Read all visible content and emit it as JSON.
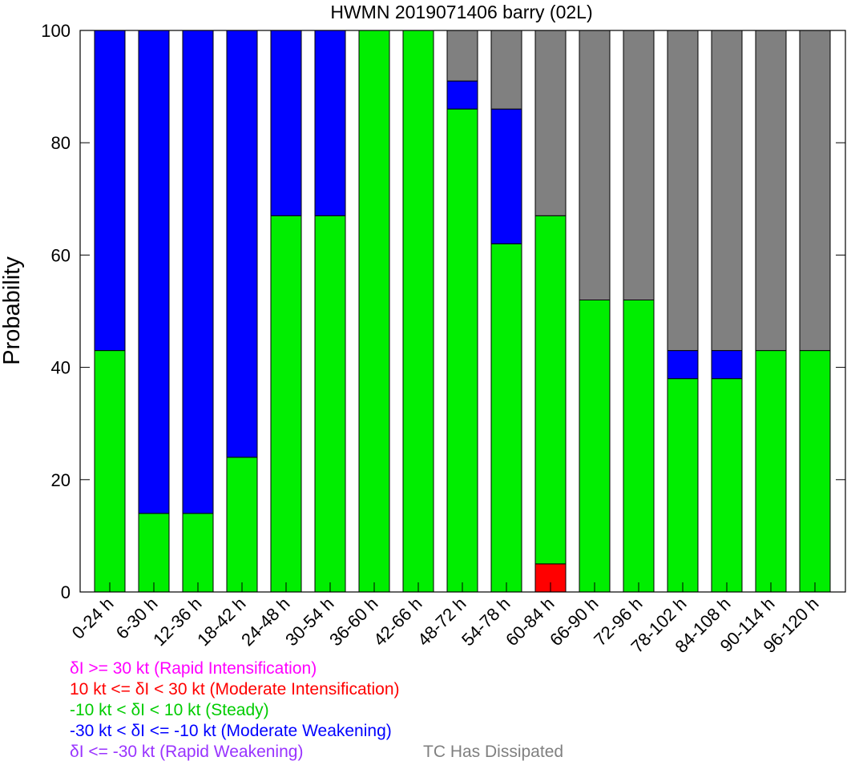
{
  "chart_data": {
    "type": "bar",
    "stacked": true,
    "title": "HWMN 2019071406 barry (02L)",
    "xlabel": "",
    "ylabel": "Probability",
    "ylim": [
      0,
      100
    ],
    "yticks": [
      "0",
      "20",
      "40",
      "60",
      "80",
      "100"
    ],
    "categories": [
      "0-24 h",
      "6-30 h",
      "12-36 h",
      "18-42 h",
      "24-48 h",
      "30-54 h",
      "36-60 h",
      "42-66 h",
      "48-72 h",
      "54-78 h",
      "60-84 h",
      "66-90 h",
      "72-96 h",
      "78-102 h",
      "84-108 h",
      "90-114 h",
      "96-120 h"
    ],
    "series": [
      {
        "key": "moderate_intensification",
        "color": "#ff0000",
        "values": [
          0,
          0,
          0,
          0,
          0,
          0,
          0,
          0,
          0,
          0,
          5,
          0,
          0,
          0,
          0,
          0,
          0
        ]
      },
      {
        "key": "steady",
        "color": "#00ee00",
        "values": [
          43,
          14,
          14,
          24,
          67,
          67,
          100,
          100,
          86,
          62,
          62,
          52,
          52,
          38,
          38,
          43,
          43
        ]
      },
      {
        "key": "moderate_weakening",
        "color": "#0000ff",
        "values": [
          57,
          86,
          86,
          76,
          33,
          33,
          0,
          0,
          5,
          24,
          0,
          0,
          0,
          5,
          5,
          0,
          0
        ]
      },
      {
        "key": "dissipated",
        "color": "#808080",
        "values": [
          0,
          0,
          0,
          0,
          0,
          0,
          0,
          0,
          9,
          14,
          33,
          48,
          48,
          57,
          57,
          57,
          57
        ]
      }
    ],
    "legend": [
      {
        "text": "δI >= 30 kt (Rapid Intensification)",
        "color": "#ff00ff"
      },
      {
        "text": "10 kt <= δI < 30 kt (Moderate Intensification)",
        "color": "#ff0000"
      },
      {
        "text": "-10 kt < δI < 10 kt (Steady)",
        "color": "#00cc00"
      },
      {
        "text": "-30 kt < δI <= -10 kt (Moderate Weakening)",
        "color": "#0000ff"
      },
      {
        "text": "δI <= -30 kt (Rapid Weakening)",
        "color": "#9933ff"
      },
      {
        "text": "TC Has Dissipated",
        "color": "#808080"
      }
    ],
    "grid": false,
    "legend_position": "bottom-left"
  }
}
